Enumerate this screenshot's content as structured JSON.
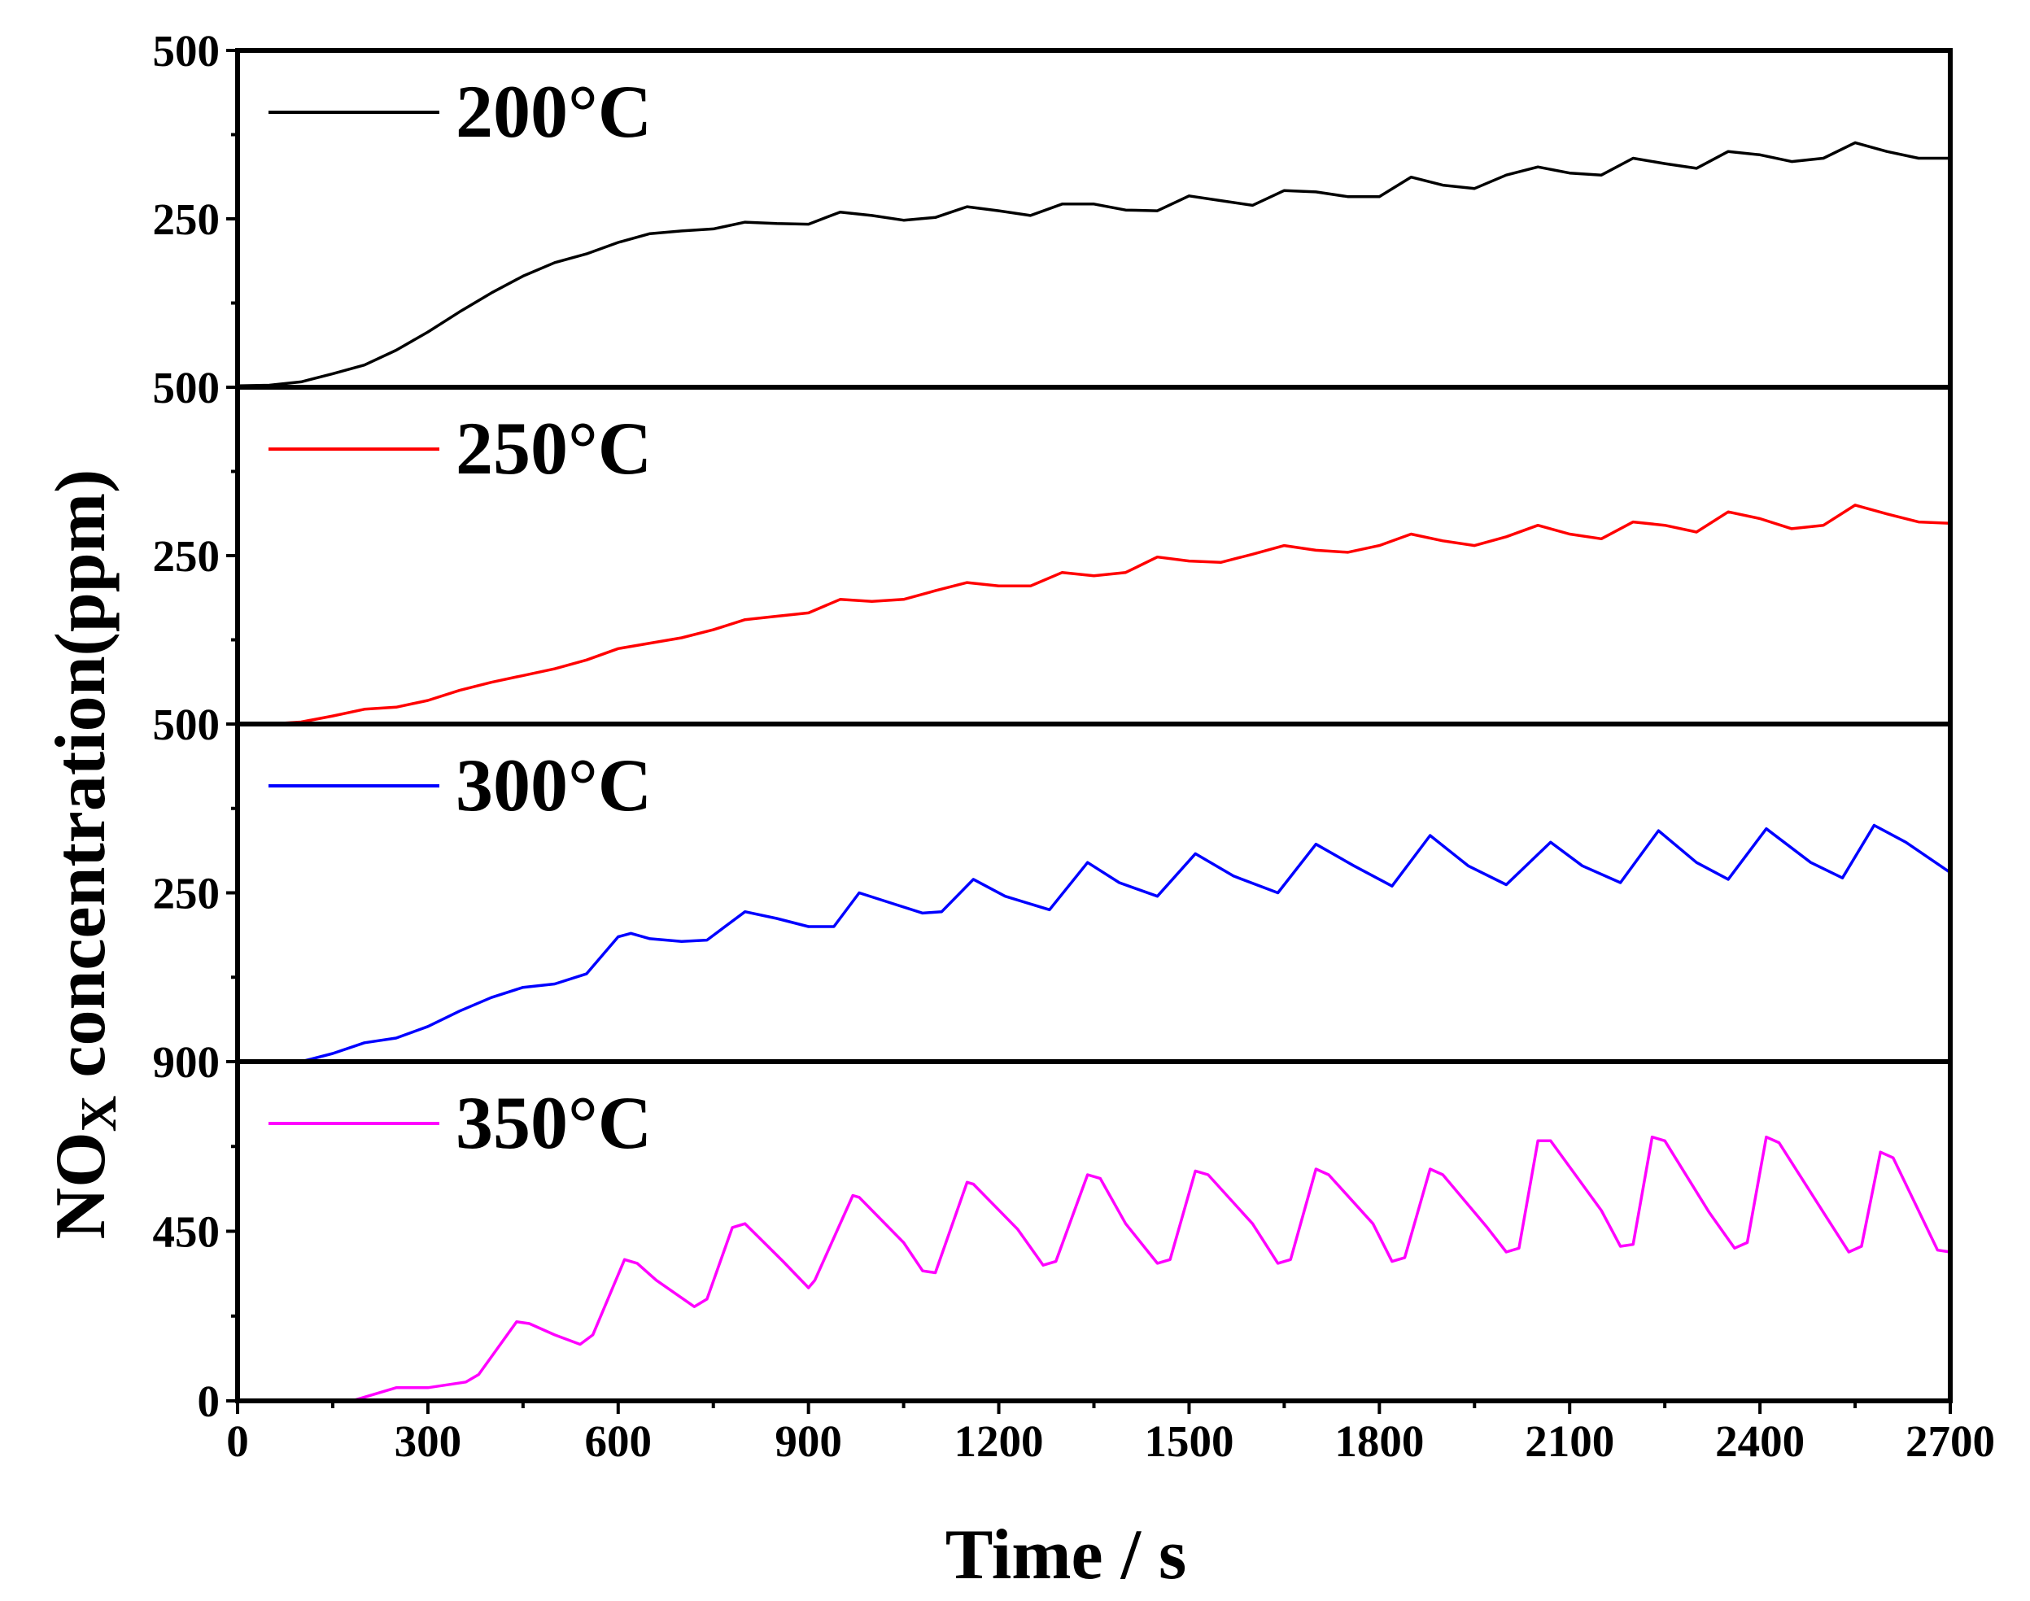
{
  "chart_data": {
    "type": "line",
    "xlabel": "Time / s",
    "ylabel_main": "NO",
    "ylabel_sub": "X",
    "ylabel_rest": " concentration(ppm)",
    "x_ticks": [
      0,
      300,
      600,
      900,
      1200,
      1500,
      1800,
      2100,
      2400,
      2700
    ],
    "xlim": [
      0,
      2700
    ],
    "panels": [
      {
        "name": "200°C",
        "label": "200°C",
        "color": "#000000",
        "ylim": [
          0,
          500
        ],
        "ticks": [
          0,
          250,
          500
        ],
        "tick_labels": [
          "",
          "250",
          "500"
        ],
        "x": [
          0,
          50,
          100,
          150,
          200,
          250,
          300,
          350,
          400,
          450,
          500,
          550,
          600,
          650,
          700,
          750,
          800,
          850,
          900,
          950,
          1000,
          1050,
          1100,
          1150,
          1200,
          1250,
          1300,
          1350,
          1400,
          1450,
          1500,
          1550,
          1600,
          1650,
          1700,
          1750,
          1800,
          1850,
          1900,
          1950,
          2000,
          2050,
          2100,
          2150,
          2200,
          2250,
          2300,
          2350,
          2400,
          2450,
          2500,
          2550,
          2600,
          2650,
          2700
        ],
        "y": [
          2,
          3,
          8,
          20,
          33,
          55,
          82,
          112,
          140,
          165,
          185,
          198,
          215,
          228,
          232,
          235,
          245,
          243,
          242,
          260,
          255,
          248,
          252,
          268,
          262,
          255,
          272,
          272,
          263,
          262,
          284,
          277,
          270,
          292,
          290,
          283,
          283,
          312,
          300,
          295,
          315,
          327,
          318,
          315,
          340,
          332,
          325,
          350,
          345,
          335,
          340,
          363,
          350,
          340,
          340
        ]
      },
      {
        "name": "250°C",
        "label": "250°C",
        "color": "#ff0000",
        "ylim": [
          0,
          500
        ],
        "ticks": [
          0,
          250,
          500
        ],
        "tick_labels": [
          "",
          "250",
          "500"
        ],
        "x": [
          0,
          50,
          100,
          150,
          200,
          250,
          300,
          350,
          400,
          450,
          500,
          550,
          600,
          650,
          700,
          750,
          800,
          850,
          900,
          950,
          1000,
          1050,
          1100,
          1150,
          1200,
          1250,
          1300,
          1350,
          1400,
          1450,
          1500,
          1550,
          1600,
          1650,
          1700,
          1750,
          1800,
          1850,
          1900,
          1950,
          2000,
          2050,
          2100,
          2150,
          2200,
          2250,
          2300,
          2350,
          2400,
          2450,
          2500,
          2550,
          2600,
          2650,
          2700
        ],
        "y": [
          0,
          0,
          3,
          12,
          22,
          25,
          35,
          50,
          62,
          72,
          82,
          95,
          112,
          120,
          128,
          140,
          155,
          160,
          165,
          185,
          182,
          185,
          198,
          210,
          205,
          205,
          225,
          220,
          225,
          248,
          242,
          240,
          252,
          265,
          258,
          255,
          265,
          282,
          272,
          265,
          278,
          295,
          282,
          275,
          300,
          295,
          285,
          315,
          305,
          290,
          295,
          325,
          312,
          300,
          298
        ]
      },
      {
        "name": "300°C",
        "label": "300°C",
        "color": "#0000ff",
        "ylim": [
          0,
          500
        ],
        "ticks": [
          0,
          250,
          500
        ],
        "tick_labels": [
          "",
          "250",
          "500"
        ],
        "x": [
          0,
          50,
          100,
          150,
          200,
          250,
          300,
          350,
          400,
          450,
          500,
          550,
          600,
          620,
          650,
          700,
          740,
          800,
          850,
          900,
          940,
          980,
          1030,
          1080,
          1110,
          1160,
          1210,
          1280,
          1340,
          1390,
          1450,
          1510,
          1570,
          1640,
          1700,
          1760,
          1820,
          1880,
          1940,
          2000,
          2070,
          2120,
          2180,
          2240,
          2300,
          2350,
          2410,
          2480,
          2530,
          2580,
          2630,
          2700
        ],
        "y": [
          0,
          0,
          0,
          12,
          28,
          35,
          52,
          75,
          95,
          110,
          115,
          130,
          185,
          190,
          182,
          178,
          180,
          222,
          212,
          200,
          200,
          250,
          235,
          220,
          222,
          270,
          245,
          225,
          295,
          265,
          245,
          308,
          275,
          250,
          322,
          290,
          260,
          335,
          290,
          262,
          325,
          290,
          265,
          342,
          295,
          270,
          345,
          295,
          272,
          350,
          325,
          280
        ]
      },
      {
        "name": "350°C",
        "label": "350°C",
        "color": "#ff00ff",
        "ylim": [
          0,
          900
        ],
        "ticks": [
          0,
          450,
          900
        ],
        "tick_labels": [
          "0",
          "450",
          "900"
        ],
        "x": [
          0,
          100,
          180,
          200,
          250,
          300,
          360,
          380,
          440,
          460,
          500,
          540,
          560,
          610,
          630,
          660,
          720,
          740,
          780,
          800,
          860,
          900,
          910,
          970,
          980,
          1050,
          1080,
          1100,
          1150,
          1160,
          1230,
          1270,
          1290,
          1340,
          1360,
          1400,
          1450,
          1470,
          1510,
          1530,
          1600,
          1640,
          1660,
          1700,
          1720,
          1790,
          1820,
          1840,
          1880,
          1900,
          1970,
          2000,
          2020,
          2050,
          2070,
          2150,
          2180,
          2200,
          2230,
          2250,
          2320,
          2360,
          2380,
          2410,
          2430,
          2500,
          2540,
          2560,
          2590,
          2610,
          2680,
          2700
        ],
        "y": [
          0,
          0,
          0,
          10,
          35,
          35,
          50,
          70,
          210,
          205,
          175,
          150,
          175,
          375,
          365,
          320,
          250,
          270,
          460,
          470,
          370,
          300,
          320,
          545,
          540,
          420,
          345,
          340,
          580,
          575,
          455,
          360,
          370,
          600,
          590,
          470,
          365,
          375,
          610,
          600,
          470,
          365,
          375,
          615,
          600,
          470,
          370,
          380,
          615,
          600,
          460,
          395,
          405,
          690,
          690,
          505,
          410,
          415,
          700,
          690,
          500,
          405,
          420,
          700,
          685,
          500,
          395,
          410,
          660,
          645,
          400,
          395
        ]
      }
    ]
  }
}
